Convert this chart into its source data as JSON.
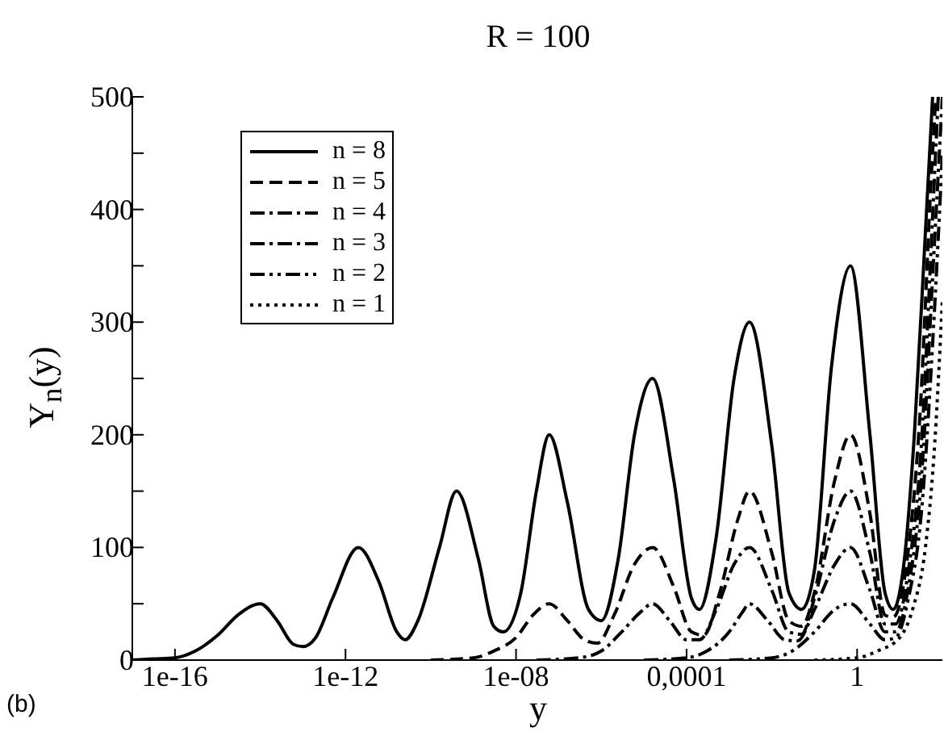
{
  "chart_data": {
    "type": "line",
    "title": "R = 100",
    "xlabel": "y",
    "ylabel": "Y$_{n}$(y)",
    "annotations": [
      "(b)"
    ],
    "log": "x",
    "xlim": [
      1e-17,
      100
    ],
    "xticks": [
      {
        "value": 1e-16,
        "label": "1e-16"
      },
      {
        "value": 1e-12,
        "label": "1e-12"
      },
      {
        "value": 1e-08,
        "label": "1e-08"
      },
      {
        "value": 0.0001,
        "label": "0,0001"
      },
      1
    ],
    "ylim": [
      0,
      500
    ],
    "yticks": [
      0,
      {
        "value": 50,
        "label": null
      },
      100,
      {
        "value": 150,
        "label": null
      },
      200,
      {
        "value": 250,
        "label": null
      },
      300,
      {
        "value": 350,
        "label": null
      },
      400,
      {
        "value": 450,
        "label": null
      },
      500
    ],
    "grid": false,
    "legend": "top left",
    "marker": "none",
    "series": [
      {
        "name": "n = 8",
        "color": "#000000",
        "line_style": "solid",
        "x": [
          1e-17,
          3e-17,
          1e-16,
          3e-16,
          1e-15,
          3e-15,
          1e-14,
          2.5e-14,
          6e-14,
          1e-13,
          2e-13,
          5e-13,
          2e-12,
          6e-12,
          1.6e-11,
          2.5e-11,
          5e-11,
          1.6e-10,
          4e-10,
          1.3e-09,
          3e-09,
          5e-09,
          1.3e-08,
          3e-08,
          6e-08,
          1.6e-07,
          5e-07,
          1e-06,
          2.5e-06,
          6e-06,
          1.6e-05,
          5e-05,
          0.00013,
          0.0002,
          0.0005,
          0.0013,
          0.003,
          0.01,
          0.025,
          0.05,
          0.1,
          0.25,
          0.7,
          2,
          4.5,
          7,
          12,
          22,
          40,
          59
        ],
        "values": [
          0,
          1,
          2,
          8,
          22,
          40,
          50,
          35,
          14,
          12,
          20,
          55,
          100,
          70,
          25,
          18,
          35,
          100,
          150,
          90,
          30,
          25,
          60,
          150,
          200,
          140,
          45,
          35,
          90,
          200,
          250,
          160,
          55,
          45,
          110,
          250,
          300,
          190,
          60,
          45,
          80,
          260,
          350,
          200,
          60,
          45,
          80,
          200,
          380,
          500
        ]
      },
      {
        "name": "n = 5",
        "color": "#000000",
        "line_style": "dashed",
        "x": [
          1e-10,
          1e-09,
          3e-09,
          1e-08,
          2.5e-08,
          6e-08,
          1.6e-07,
          4e-07,
          8e-07,
          2e-06,
          6e-06,
          1.6e-05,
          5e-05,
          0.00013,
          0.00025,
          0.0006,
          0.0016,
          0.003,
          0.01,
          0.025,
          0.05,
          0.1,
          0.3,
          0.7,
          2,
          4.5,
          7,
          15,
          30,
          55,
          70
        ],
        "values": [
          0,
          2,
          8,
          20,
          40,
          50,
          35,
          18,
          15,
          40,
          85,
          100,
          65,
          25,
          22,
          60,
          125,
          150,
          95,
          35,
          30,
          60,
          160,
          200,
          130,
          40,
          38,
          90,
          220,
          430,
          500
        ]
      },
      {
        "name": "n = 4",
        "color": "#000000",
        "line_style": "dashdot",
        "x": [
          3e-08,
          3e-07,
          1e-06,
          3e-06,
          8e-06,
          1.6e-05,
          4e-05,
          0.0001,
          0.0002,
          0.0005,
          0.0013,
          0.003,
          0.01,
          0.025,
          0.05,
          0.1,
          0.3,
          0.7,
          2,
          4.5,
          8,
          16,
          32,
          60,
          80
        ],
        "values": [
          0,
          2,
          8,
          25,
          42,
          50,
          35,
          18,
          18,
          45,
          85,
          100,
          62,
          25,
          23,
          55,
          125,
          150,
          95,
          32,
          32,
          80,
          190,
          400,
          500
        ]
      },
      {
        "name": "n = 3",
        "color": "#000000",
        "line_style": "dashdot",
        "x": [
          1e-05,
          0.0001,
          0.0003,
          0.001,
          0.002,
          0.003,
          0.008,
          0.02,
          0.04,
          0.1,
          0.3,
          0.7,
          2,
          4.5,
          8,
          16,
          32,
          63,
          100
        ],
        "values": [
          0,
          2,
          8,
          25,
          42,
          50,
          35,
          18,
          17,
          45,
          85,
          100,
          62,
          25,
          25,
          65,
          160,
          360,
          500
        ]
      },
      {
        "name": "n = 2",
        "color": "#000000",
        "line_style": "dashdotdot",
        "x": [
          0.001,
          0.01,
          0.03,
          0.1,
          0.3,
          0.7,
          2,
          4.5,
          8,
          16,
          32,
          63,
          100
        ],
        "values": [
          0,
          2,
          8,
          25,
          45,
          50,
          32,
          18,
          20,
          55,
          130,
          300,
          450
        ]
      },
      {
        "name": "n = 1",
        "color": "#000000",
        "line_style": "dotted",
        "x": [
          0.1,
          1,
          3,
          10,
          20,
          40,
          63,
          100
        ],
        "values": [
          0,
          2,
          8,
          20,
          45,
          100,
          180,
          320
        ]
      }
    ]
  }
}
